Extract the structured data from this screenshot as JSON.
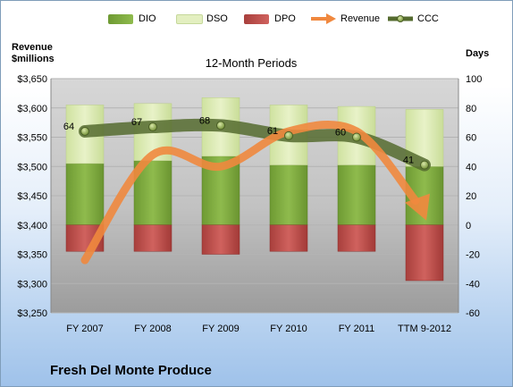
{
  "company_name": "Fresh Del Monte Produce",
  "chart_data": {
    "type": "bar",
    "title": "12-Month Periods",
    "categories": [
      "FY 2007",
      "FY 2008",
      "FY 2009",
      "FY 2010",
      "FY 2011",
      "TTM 9-2012"
    ],
    "left_axis": {
      "label_line1": "Revenue",
      "label_line2": "$millions",
      "ylim": [
        3250,
        3650
      ],
      "ticks": [
        "$3,250",
        "$3,300",
        "$3,350",
        "$3,400",
        "$3,450",
        "$3,500",
        "$3,550",
        "$3,600",
        "$3,650"
      ]
    },
    "right_axis": {
      "label": "Days",
      "ylim": [
        -60,
        100
      ],
      "ticks": [
        "-60",
        "-40",
        "-20",
        "0",
        "20",
        "40",
        "60",
        "80",
        "100"
      ]
    },
    "legend_position": "top",
    "series": [
      {
        "name": "DIO",
        "axis": "right",
        "kind": "stacked-bar",
        "color": "#77a33a",
        "values": [
          42,
          44,
          47,
          41,
          41,
          40
        ]
      },
      {
        "name": "DSO",
        "axis": "right",
        "kind": "stacked-bar",
        "color": "#d8e8b0",
        "values": [
          40,
          39,
          40,
          41,
          40,
          39
        ]
      },
      {
        "name": "DPO",
        "axis": "right",
        "kind": "bar-negative",
        "color": "#c0504d",
        "values": [
          -18,
          -18,
          -20,
          -18,
          -18,
          -38
        ]
      },
      {
        "name": "Revenue",
        "axis": "left",
        "kind": "arrow-line",
        "color": "#f0883e",
        "values": [
          3340,
          3520,
          3500,
          3560,
          3560,
          3420
        ]
      },
      {
        "name": "CCC",
        "axis": "right",
        "kind": "line-markers",
        "color": "#556b2f",
        "values": [
          64,
          67,
          68,
          61,
          60,
          41
        ],
        "data_labels": [
          "64",
          "67",
          "68",
          "61",
          "60",
          "41"
        ]
      }
    ]
  }
}
